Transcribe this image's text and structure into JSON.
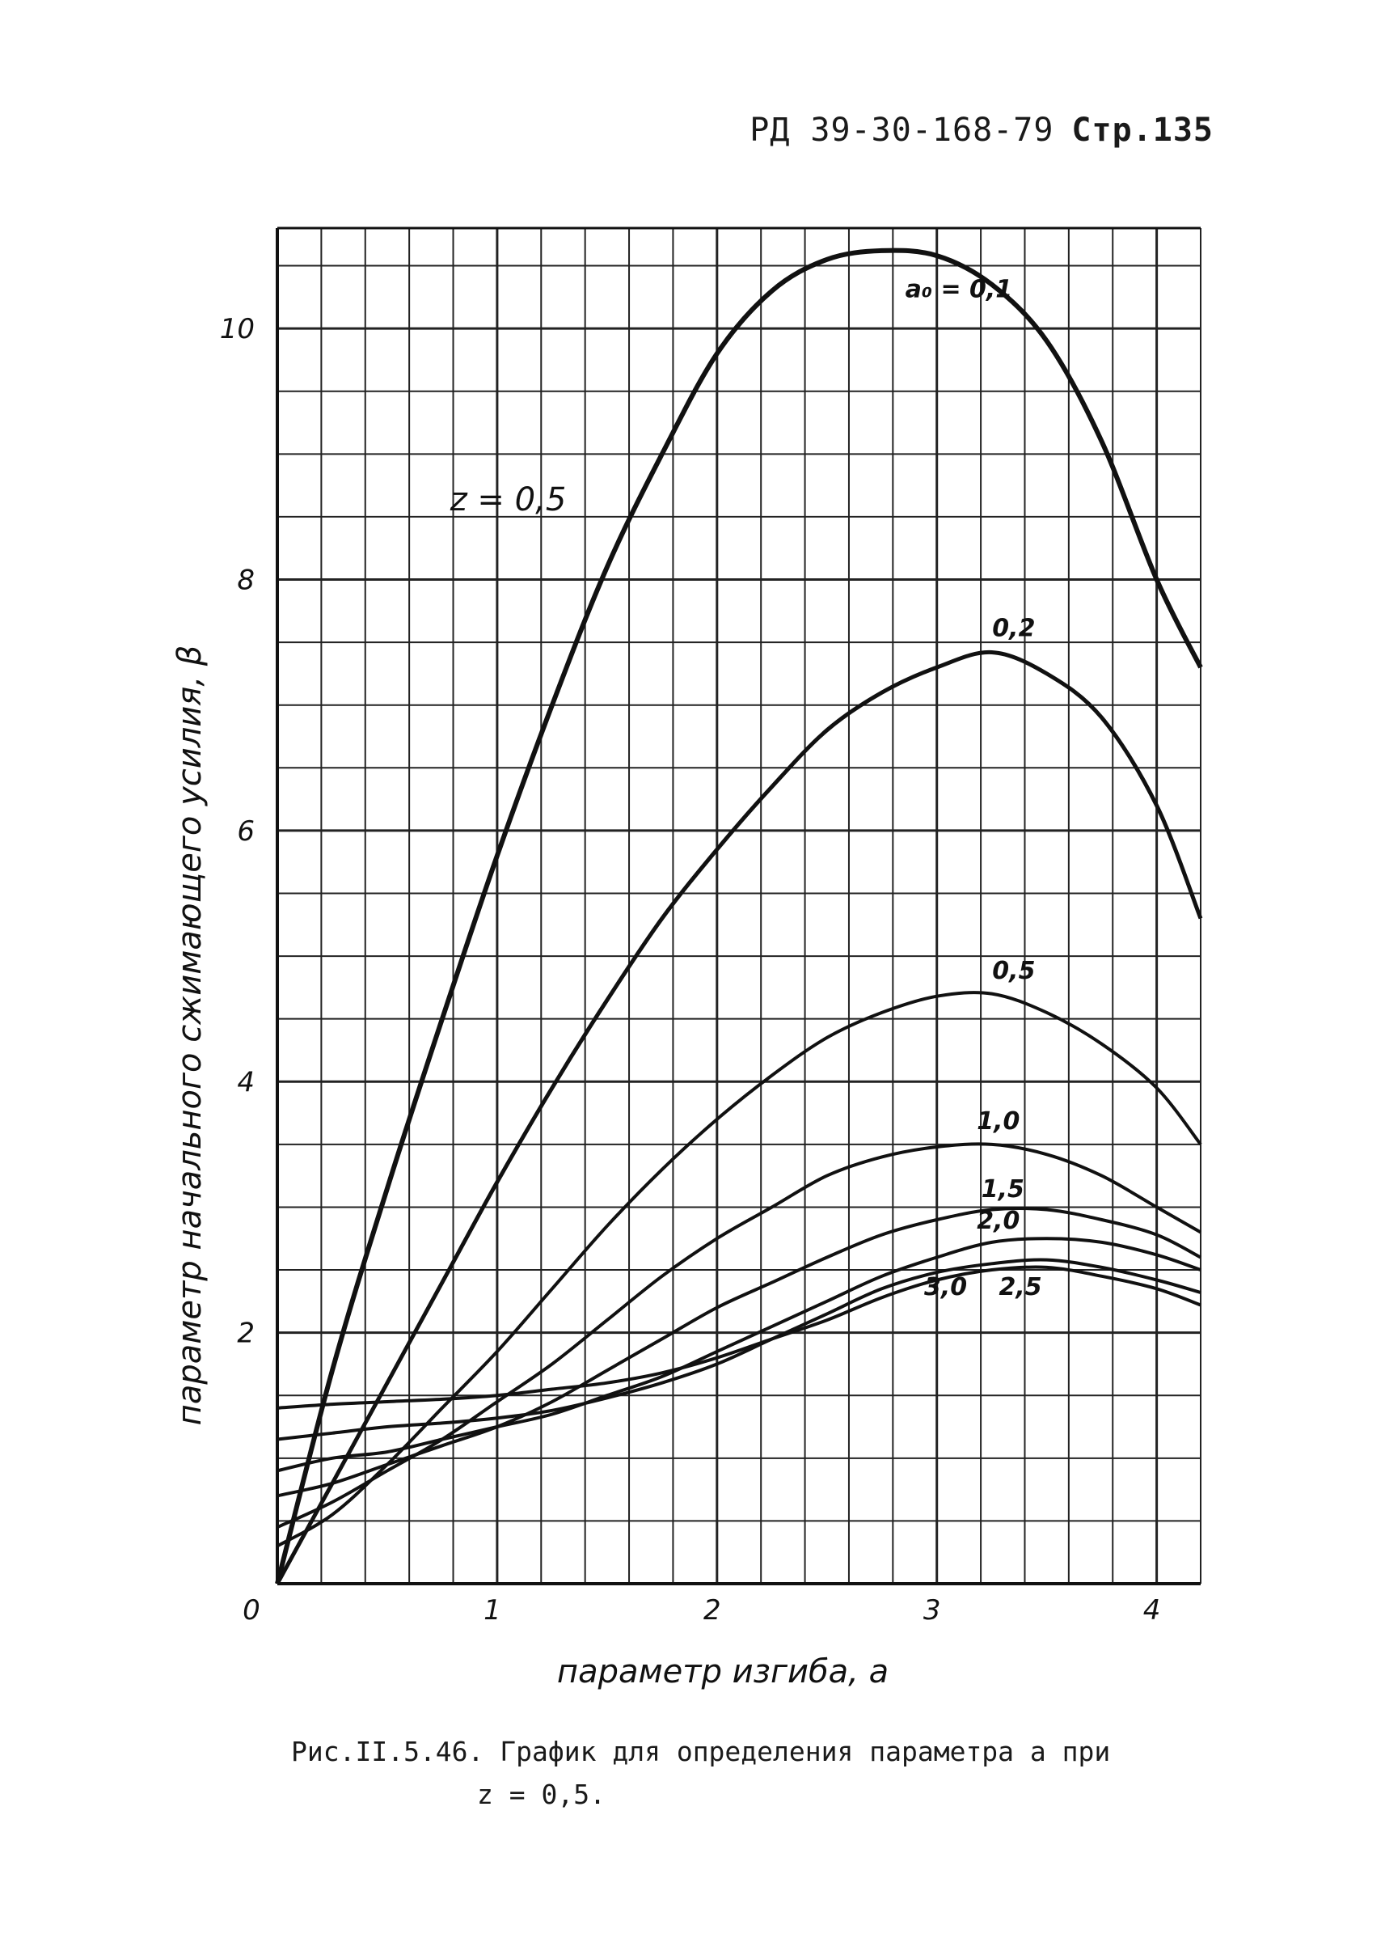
{
  "header": {
    "doc_code": "РД 39-30-168-79",
    "page": "Стр.135"
  },
  "caption": {
    "line1": "Рис.II.5.46. График для определения параметра a при",
    "line2": "z = 0,5."
  },
  "chart_data": {
    "type": "line",
    "xlabel": "параметр изгиба, a",
    "ylabel": "параметр начального сжимающего усилия, β",
    "annotation": "z = 0,5",
    "xlim": [
      0,
      4.2
    ],
    "ylim": [
      0,
      10.8
    ],
    "x_ticks": [
      "0",
      "1",
      "2",
      "3",
      "4"
    ],
    "y_ticks": [
      "2",
      "4",
      "6",
      "8",
      "10"
    ],
    "grid": true,
    "x": [
      0,
      0.25,
      0.5,
      0.75,
      1.0,
      1.25,
      1.5,
      1.75,
      2.0,
      2.25,
      2.5,
      2.75,
      3.0,
      3.25,
      3.5,
      3.75,
      4.0,
      4.2
    ],
    "series": [
      {
        "name": "a₀ = 0,1",
        "label": "a₀ = 0,1",
        "values": [
          0,
          1.7,
          3.15,
          4.5,
          5.8,
          7.0,
          8.1,
          9.0,
          9.8,
          10.3,
          10.55,
          10.62,
          10.58,
          10.35,
          9.9,
          9.1,
          8.0,
          7.3
        ]
      },
      {
        "name": "0,2",
        "label": "0,2",
        "values": [
          0,
          0.8,
          1.6,
          2.4,
          3.2,
          3.95,
          4.65,
          5.3,
          5.85,
          6.35,
          6.8,
          7.1,
          7.3,
          7.42,
          7.25,
          6.9,
          6.2,
          5.3
        ]
      },
      {
        "name": "0,5",
        "label": "0,5",
        "values": [
          0.3,
          0.55,
          0.95,
          1.4,
          1.85,
          2.35,
          2.85,
          3.3,
          3.7,
          4.05,
          4.35,
          4.55,
          4.68,
          4.7,
          4.55,
          4.3,
          3.95,
          3.5
        ]
      },
      {
        "name": "1,0",
        "label": "1,0",
        "values": [
          0.45,
          0.65,
          0.9,
          1.15,
          1.45,
          1.75,
          2.1,
          2.45,
          2.75,
          3.0,
          3.25,
          3.4,
          3.48,
          3.5,
          3.42,
          3.25,
          3.0,
          2.8
        ]
      },
      {
        "name": "1,5",
        "label": "1,5",
        "values": [
          0.7,
          0.8,
          0.95,
          1.1,
          1.25,
          1.45,
          1.7,
          1.95,
          2.2,
          2.4,
          2.6,
          2.78,
          2.9,
          2.98,
          2.98,
          2.9,
          2.78,
          2.6
        ]
      },
      {
        "name": "2,0",
        "label": "2,0",
        "values": [
          0.9,
          1.0,
          1.05,
          1.15,
          1.25,
          1.35,
          1.5,
          1.65,
          1.85,
          2.05,
          2.25,
          2.45,
          2.6,
          2.72,
          2.75,
          2.72,
          2.62,
          2.5
        ]
      },
      {
        "name": "2,5",
        "label": "2,5",
        "values": [
          1.15,
          1.2,
          1.25,
          1.28,
          1.32,
          1.38,
          1.48,
          1.6,
          1.75,
          1.95,
          2.15,
          2.35,
          2.48,
          2.55,
          2.58,
          2.52,
          2.42,
          2.32
        ]
      },
      {
        "name": "3,0",
        "label": "3,0",
        "values": [
          1.4,
          1.43,
          1.45,
          1.47,
          1.5,
          1.55,
          1.6,
          1.68,
          1.8,
          1.95,
          2.1,
          2.28,
          2.42,
          2.5,
          2.52,
          2.45,
          2.35,
          2.22
        ]
      }
    ]
  }
}
